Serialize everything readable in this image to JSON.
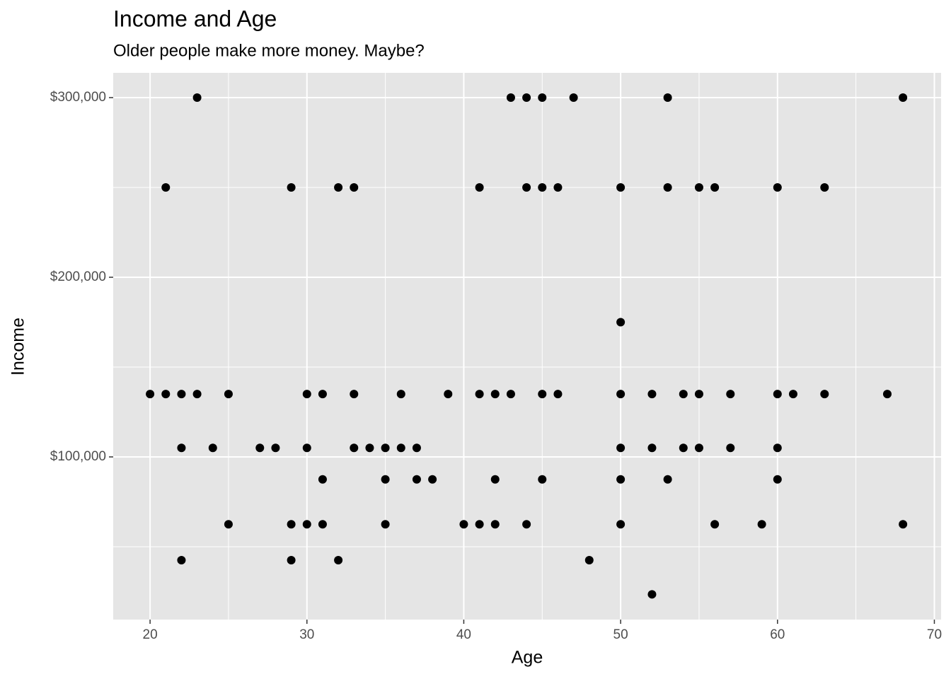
{
  "chart_data": {
    "type": "scatter",
    "title": "Income and Age",
    "subtitle": "Older people make more money. Maybe?",
    "x_label": "Age",
    "y_label": "Income",
    "x": [
      23,
      43,
      44,
      45,
      47,
      53,
      68,
      21,
      29,
      32,
      33,
      41,
      44,
      45,
      46,
      50,
      53,
      55,
      56,
      60,
      63,
      50,
      20,
      21,
      22,
      23,
      25,
      30,
      31,
      33,
      36,
      39,
      41,
      42,
      43,
      45,
      46,
      50,
      52,
      54,
      55,
      57,
      60,
      61,
      63,
      67,
      22,
      24,
      27,
      28,
      30,
      33,
      34,
      35,
      36,
      37,
      50,
      52,
      54,
      55,
      57,
      60,
      31,
      35,
      37,
      38,
      42,
      45,
      50,
      53,
      60,
      25,
      29,
      30,
      31,
      35,
      40,
      41,
      42,
      44,
      50,
      56,
      59,
      68,
      22,
      29,
      32,
      48,
      52
    ],
    "y": [
      300000,
      300000,
      300000,
      300000,
      300000,
      300000,
      300000,
      250000,
      250000,
      250000,
      250000,
      250000,
      250000,
      250000,
      250000,
      250000,
      250000,
      250000,
      250000,
      250000,
      250000,
      175000,
      135000,
      135000,
      135000,
      135000,
      135000,
      135000,
      135000,
      135000,
      135000,
      135000,
      135000,
      135000,
      135000,
      135000,
      135000,
      135000,
      135000,
      135000,
      135000,
      135000,
      135000,
      135000,
      135000,
      135000,
      105000,
      105000,
      105000,
      105000,
      105000,
      105000,
      105000,
      105000,
      105000,
      105000,
      105000,
      105000,
      105000,
      105000,
      105000,
      105000,
      87500,
      87500,
      87500,
      87500,
      87500,
      87500,
      87500,
      87500,
      87500,
      62500,
      62500,
      62500,
      62500,
      62500,
      62500,
      62500,
      62500,
      62500,
      62500,
      62500,
      62500,
      62500,
      42500,
      42500,
      42500,
      42500,
      23500
    ],
    "color": "#000000",
    "xlim": [
      17.65,
      70.43
    ],
    "ylim": [
      9450,
      313780
    ],
    "xticks": [
      20,
      30,
      40,
      50,
      60,
      70
    ],
    "yticks": [
      {
        "value": 100000,
        "label": "$100,000"
      },
      {
        "value": 200000,
        "label": "$200,000"
      },
      {
        "value": 300000,
        "label": "$300,000"
      }
    ],
    "xminor": [
      25,
      35,
      45,
      55,
      65
    ],
    "yminor": [
      50000,
      150000,
      250000
    ],
    "grid": true,
    "background": "#e5e5e5"
  }
}
